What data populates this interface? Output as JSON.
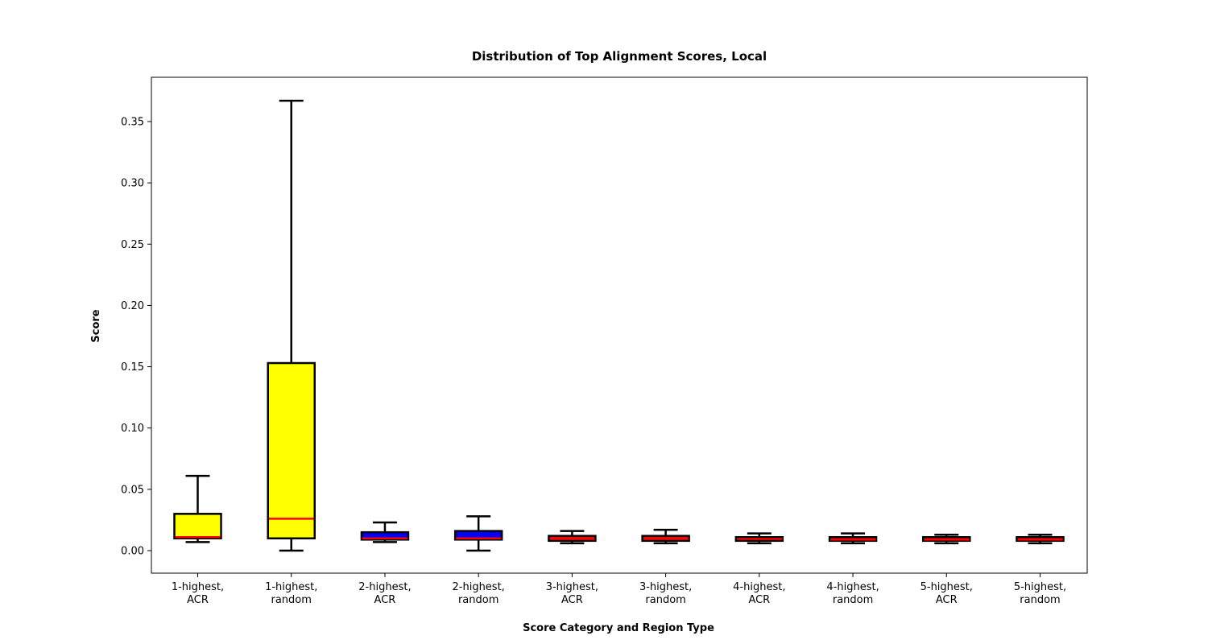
{
  "chart_data": {
    "type": "box",
    "title": "Distribution of Top Alignment Scores, Local",
    "xlabel": "Score Category and Region Type",
    "ylabel": "Score",
    "ylim": [
      -0.018,
      0.386
    ],
    "yticks": [
      0.0,
      0.05,
      0.1,
      0.15,
      0.2,
      0.25,
      0.3,
      0.35
    ],
    "ytick_labels": [
      "0.00",
      "0.05",
      "0.10",
      "0.15",
      "0.20",
      "0.25",
      "0.30",
      "0.35"
    ],
    "grid": false,
    "legend": "none",
    "colors": {
      "median": "#ff0000",
      "edge": "#000000"
    },
    "categories": [
      {
        "line1": "1-highest,",
        "line2": "ACR",
        "min": 0.007,
        "q1": 0.01,
        "median": 0.011,
        "q3": 0.03,
        "max": 0.061,
        "fill": "#ffff00"
      },
      {
        "line1": "1-highest,",
        "line2": "random",
        "min": 0.0,
        "q1": 0.01,
        "median": 0.026,
        "q3": 0.153,
        "max": 0.367,
        "fill": "#ffff00"
      },
      {
        "line1": "2-highest,",
        "line2": "ACR",
        "min": 0.007,
        "q1": 0.009,
        "median": 0.01,
        "q3": 0.015,
        "max": 0.023,
        "fill": "#0000ff"
      },
      {
        "line1": "2-highest,",
        "line2": "random",
        "min": 0.0,
        "q1": 0.009,
        "median": 0.01,
        "q3": 0.016,
        "max": 0.028,
        "fill": "#0000ff"
      },
      {
        "line1": "3-highest,",
        "line2": "ACR",
        "min": 0.006,
        "q1": 0.008,
        "median": 0.0095,
        "q3": 0.012,
        "max": 0.016,
        "fill": "#ff0000"
      },
      {
        "line1": "3-highest,",
        "line2": "random",
        "min": 0.006,
        "q1": 0.008,
        "median": 0.0095,
        "q3": 0.012,
        "max": 0.017,
        "fill": "#ff0000"
      },
      {
        "line1": "4-highest,",
        "line2": "ACR",
        "min": 0.006,
        "q1": 0.008,
        "median": 0.0095,
        "q3": 0.011,
        "max": 0.014,
        "fill": "#ff0000"
      },
      {
        "line1": "4-highest,",
        "line2": "random",
        "min": 0.006,
        "q1": 0.008,
        "median": 0.009,
        "q3": 0.011,
        "max": 0.014,
        "fill": "#ff0000"
      },
      {
        "line1": "5-highest,",
        "line2": "ACR",
        "min": 0.006,
        "q1": 0.008,
        "median": 0.009,
        "q3": 0.011,
        "max": 0.013,
        "fill": "#ff0000"
      },
      {
        "line1": "5-highest,",
        "line2": "random",
        "min": 0.006,
        "q1": 0.008,
        "median": 0.009,
        "q3": 0.011,
        "max": 0.013,
        "fill": "#ff0000"
      }
    ]
  }
}
